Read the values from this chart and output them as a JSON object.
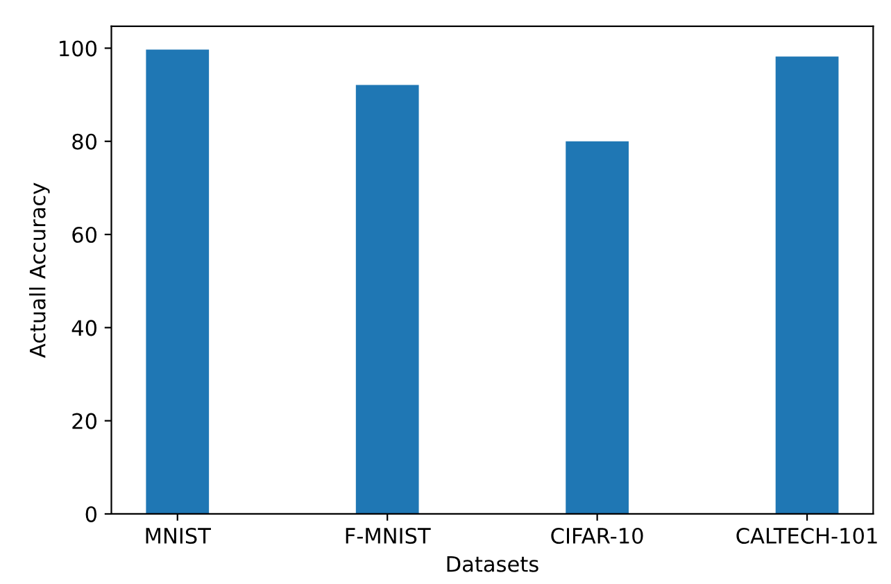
{
  "chart_data": {
    "type": "bar",
    "xlabel": "Datasets",
    "ylabel": "Actuall Accuracy",
    "categories": [
      "MNIST",
      "F-MNIST",
      "CIFAR-10",
      "CALTECH-101"
    ],
    "values": [
      99.7,
      92.1,
      80.0,
      98.2
    ],
    "color": "#1f77b4",
    "ylim": [
      0,
      104.7
    ],
    "yticks": [
      0,
      20,
      40,
      60,
      80,
      100
    ],
    "grid": false,
    "legend": false
  }
}
